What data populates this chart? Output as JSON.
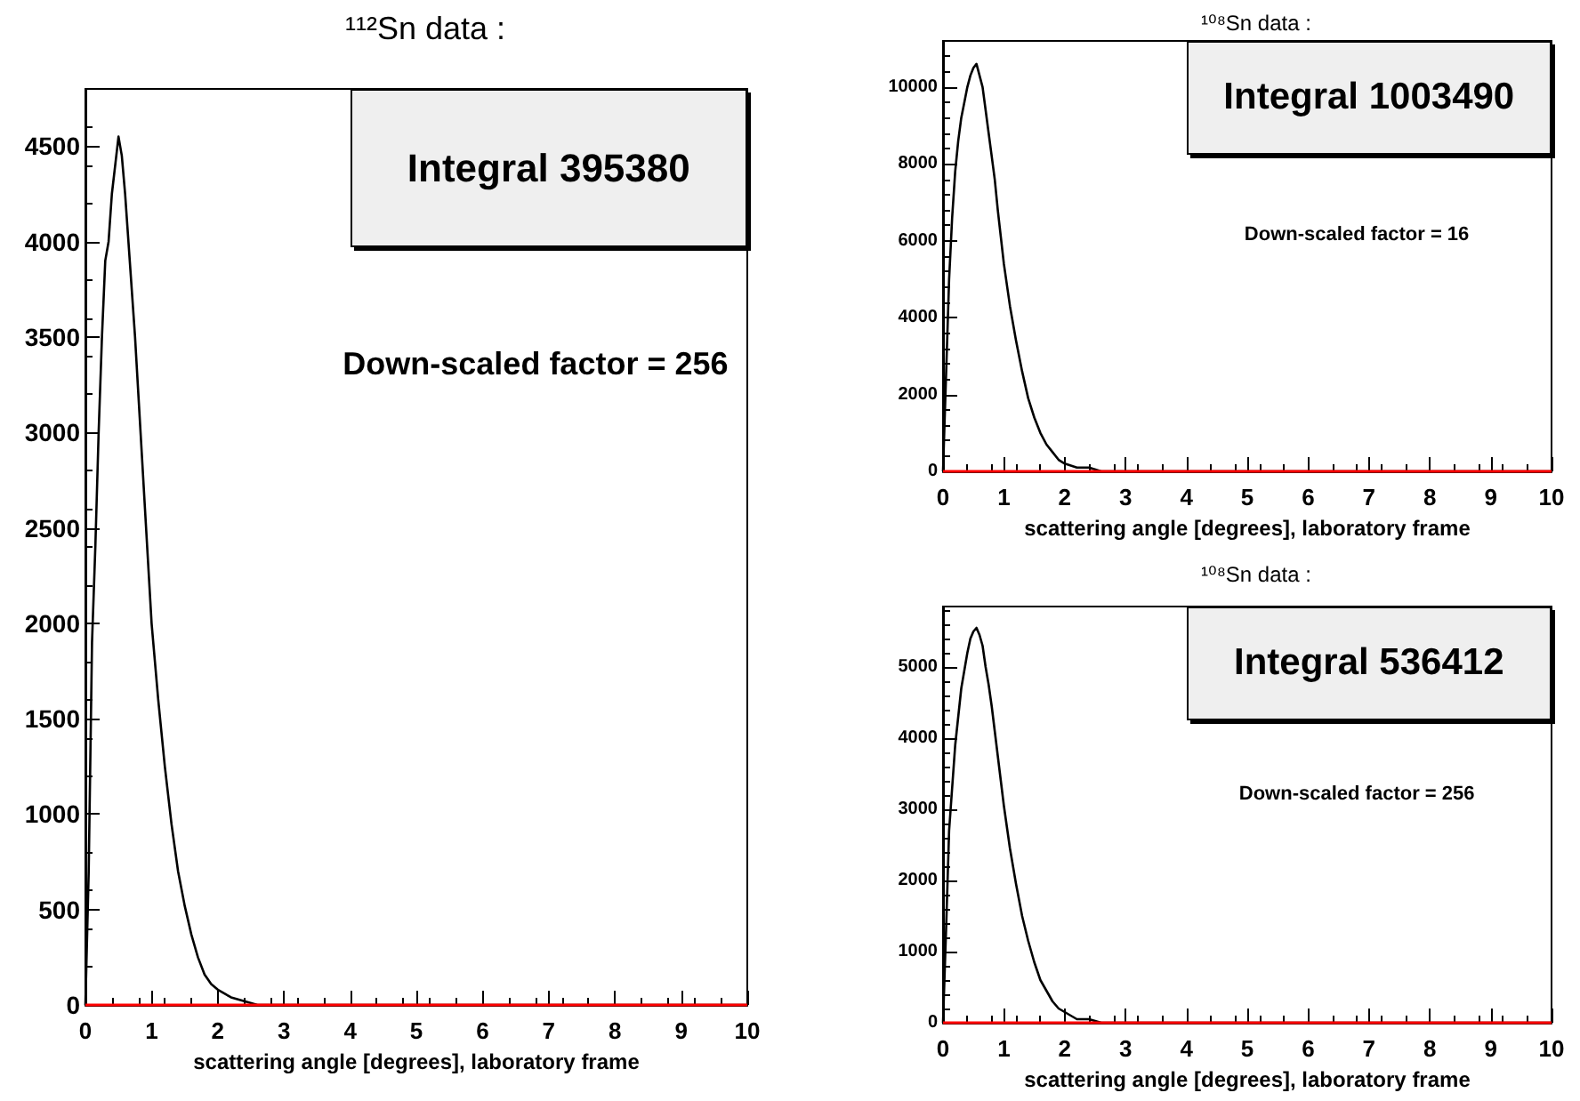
{
  "chart_data": [
    {
      "type": "line",
      "title": "¹¹²Sn data :",
      "xlabel": "scattering angle [degrees], laboratory frame",
      "annotations": [
        "Integral 395380",
        "Down-scaled factor = 256"
      ],
      "xlim": [
        0,
        10
      ],
      "xticks": [
        0,
        1,
        2,
        3,
        4,
        5,
        6,
        7,
        8,
        9,
        10
      ],
      "ylim": [
        0,
        4800
      ],
      "yticks": [
        0,
        500,
        1000,
        1500,
        2000,
        2500,
        3000,
        3500,
        4000,
        4500
      ],
      "grid": false,
      "marker": "none",
      "ref_lines": [
        {
          "axis": "y",
          "value": 0,
          "color": "#ff0000"
        }
      ],
      "series": [
        {
          "color": "#000000",
          "x": [
            0,
            0.05,
            0.1,
            0.15,
            0.2,
            0.25,
            0.3,
            0.35,
            0.4,
            0.45,
            0.5,
            0.55,
            0.6,
            0.65,
            0.7,
            0.75,
            0.8,
            0.85,
            0.9,
            0.95,
            1.0,
            1.1,
            1.2,
            1.3,
            1.4,
            1.5,
            1.6,
            1.7,
            1.8,
            1.9,
            2.0,
            2.2,
            2.4,
            2.6,
            2.8,
            3.0,
            4,
            5,
            6,
            7,
            8,
            9,
            10
          ],
          "values": [
            0,
            700,
            1900,
            2400,
            3000,
            3500,
            3900,
            4000,
            4250,
            4400,
            4550,
            4450,
            4250,
            4000,
            3750,
            3500,
            3200,
            2900,
            2600,
            2300,
            2000,
            1600,
            1250,
            950,
            700,
            520,
            370,
            250,
            160,
            110,
            80,
            40,
            20,
            0,
            0,
            0,
            0,
            0,
            0,
            0,
            0,
            0,
            0
          ]
        }
      ]
    },
    {
      "type": "line",
      "title": "¹⁰⁸Sn data :",
      "xlabel": "scattering angle [degrees], laboratory frame",
      "annotations": [
        "Integral 1003490",
        "Down-scaled factor = 16"
      ],
      "xlim": [
        0,
        10
      ],
      "xticks": [
        0,
        1,
        2,
        3,
        4,
        5,
        6,
        7,
        8,
        9,
        10
      ],
      "ylim": [
        0,
        11200
      ],
      "yticks": [
        0,
        2000,
        4000,
        6000,
        8000,
        10000
      ],
      "grid": false,
      "marker": "none",
      "ref_lines": [
        {
          "axis": "y",
          "value": 0,
          "color": "#ff0000"
        }
      ],
      "series": [
        {
          "color": "#000000",
          "x": [
            0,
            0.05,
            0.1,
            0.15,
            0.2,
            0.25,
            0.3,
            0.35,
            0.4,
            0.45,
            0.5,
            0.55,
            0.6,
            0.65,
            0.7,
            0.75,
            0.8,
            0.85,
            0.9,
            0.95,
            1.0,
            1.1,
            1.2,
            1.3,
            1.4,
            1.5,
            1.6,
            1.7,
            1.8,
            1.9,
            2.0,
            2.2,
            2.4,
            2.6,
            2.8,
            3.0,
            4,
            5,
            6,
            7,
            8,
            9,
            10
          ],
          "values": [
            0,
            2500,
            5000,
            6600,
            7800,
            8600,
            9200,
            9600,
            10000,
            10300,
            10500,
            10600,
            10300,
            10000,
            9400,
            8800,
            8200,
            7600,
            6800,
            6100,
            5400,
            4300,
            3400,
            2600,
            1900,
            1400,
            1000,
            700,
            500,
            300,
            200,
            100,
            100,
            0,
            0,
            0,
            0,
            0,
            0,
            0,
            0,
            0,
            0
          ]
        }
      ]
    },
    {
      "type": "line",
      "title": "¹⁰⁸Sn data :",
      "xlabel": "scattering angle [degrees], laboratory frame",
      "annotations": [
        "Integral 536412",
        "Down-scaled factor = 256"
      ],
      "xlim": [
        0,
        10
      ],
      "xticks": [
        0,
        1,
        2,
        3,
        4,
        5,
        6,
        7,
        8,
        9,
        10
      ],
      "ylim": [
        0,
        5850
      ],
      "yticks": [
        0,
        1000,
        2000,
        3000,
        4000,
        5000
      ],
      "grid": false,
      "marker": "none",
      "ref_lines": [
        {
          "axis": "y",
          "value": 0,
          "color": "#ff0000"
        }
      ],
      "series": [
        {
          "color": "#000000",
          "x": [
            0,
            0.05,
            0.1,
            0.15,
            0.2,
            0.25,
            0.3,
            0.35,
            0.4,
            0.45,
            0.5,
            0.55,
            0.6,
            0.65,
            0.7,
            0.75,
            0.8,
            0.85,
            0.9,
            0.95,
            1.0,
            1.1,
            1.2,
            1.3,
            1.4,
            1.5,
            1.6,
            1.7,
            1.8,
            1.9,
            2.0,
            2.2,
            2.4,
            2.6,
            2.8,
            3.0,
            4,
            5,
            6,
            7,
            8,
            9,
            10
          ],
          "values": [
            0,
            1300,
            2700,
            3300,
            3900,
            4300,
            4700,
            4950,
            5200,
            5400,
            5500,
            5550,
            5450,
            5300,
            5000,
            4750,
            4450,
            4100,
            3750,
            3400,
            3050,
            2450,
            1950,
            1500,
            1150,
            850,
            600,
            450,
            300,
            200,
            150,
            50,
            50,
            0,
            0,
            0,
            0,
            0,
            0,
            0,
            0,
            0,
            0
          ]
        }
      ]
    }
  ]
}
